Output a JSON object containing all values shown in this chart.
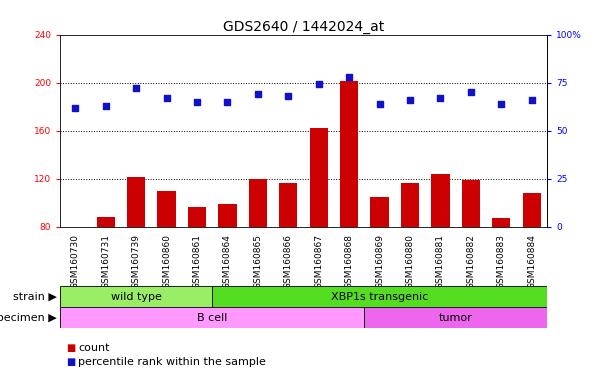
{
  "title": "GDS2640 / 1442024_at",
  "samples": [
    "GSM160730",
    "GSM160731",
    "GSM160739",
    "GSM160860",
    "GSM160861",
    "GSM160864",
    "GSM160865",
    "GSM160866",
    "GSM160867",
    "GSM160868",
    "GSM160869",
    "GSM160880",
    "GSM160881",
    "GSM160882",
    "GSM160883",
    "GSM160884"
  ],
  "counts": [
    80,
    88,
    121,
    110,
    96,
    99,
    120,
    116,
    162,
    201,
    105,
    116,
    124,
    119,
    87,
    108
  ],
  "percentiles": [
    62,
    63,
    72,
    67,
    65,
    65,
    69,
    68,
    74,
    78,
    64,
    66,
    67,
    70,
    64,
    66
  ],
  "ylim_left": [
    80,
    240
  ],
  "ylim_right": [
    0,
    100
  ],
  "yticks_left": [
    80,
    120,
    160,
    200,
    240
  ],
  "yticks_right": [
    0,
    25,
    50,
    75,
    100
  ],
  "bar_color": "#cc0000",
  "dot_color": "#1111cc",
  "grid_color": "black",
  "plot_bg": "white",
  "strain_groups": [
    {
      "label": "wild type",
      "start": 0,
      "end": 5,
      "color": "#99ee66"
    },
    {
      "label": "XBP1s transgenic",
      "start": 5,
      "end": 16,
      "color": "#55dd22"
    }
  ],
  "specimen_groups": [
    {
      "label": "B cell",
      "start": 0,
      "end": 10,
      "color": "#ff99ff"
    },
    {
      "label": "tumor",
      "start": 10,
      "end": 16,
      "color": "#ee66ee"
    }
  ],
  "strain_label": "strain",
  "specimen_label": "specimen",
  "legend_count_label": "count",
  "legend_pct_label": "percentile rank within the sample",
  "title_fontsize": 10,
  "tick_fontsize": 6.5,
  "label_fontsize": 8,
  "annotation_fontsize": 8
}
